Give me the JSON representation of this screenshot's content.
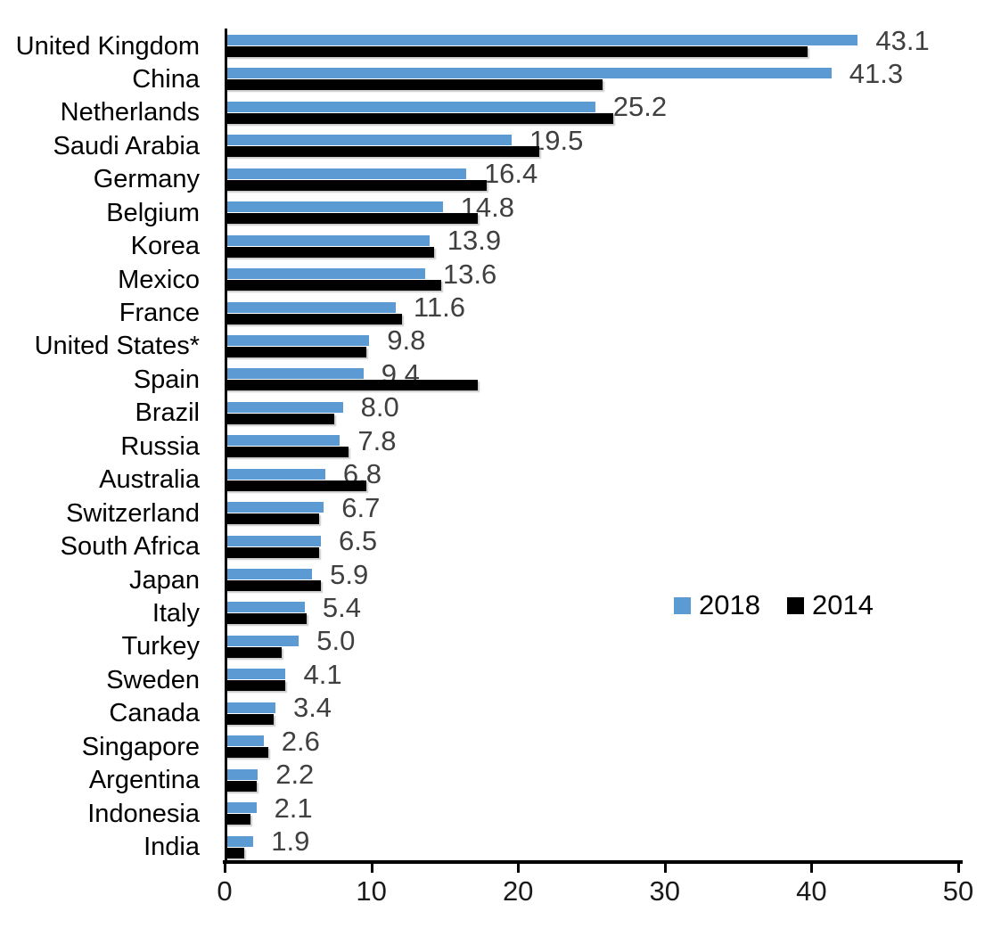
{
  "chart_data": {
    "type": "bar",
    "orientation": "horizontal",
    "title": "",
    "xlabel": "",
    "ylabel": "",
    "xlim": [
      0,
      50
    ],
    "x_ticks": [
      "0",
      "10",
      "20",
      "30",
      "40",
      "50"
    ],
    "grid": false,
    "legend_position": "middle-right",
    "categories": [
      "United Kingdom",
      "China",
      "Netherlands",
      "Saudi Arabia",
      "Germany",
      "Belgium",
      "Korea",
      "Mexico",
      "France",
      "United States*",
      "Spain",
      "Brazil",
      "Russia",
      "Australia",
      "Switzerland",
      "South Africa",
      "Japan",
      "Italy",
      "Turkey",
      "Sweden",
      "Canada",
      "Singapore",
      "Argentina",
      "Indonesia",
      "India"
    ],
    "series": [
      {
        "name": "2018",
        "color": "#5b9ad2",
        "values": [
          43.1,
          41.3,
          25.2,
          19.5,
          16.4,
          14.8,
          13.9,
          13.6,
          11.6,
          9.8,
          9.4,
          8.0,
          7.8,
          6.8,
          6.7,
          6.5,
          5.9,
          5.4,
          5.0,
          4.1,
          3.4,
          2.6,
          2.2,
          2.1,
          1.9
        ]
      },
      {
        "name": "2014",
        "color": "#000000",
        "values": [
          39.7,
          25.7,
          26.4,
          21.4,
          17.8,
          17.2,
          14.2,
          14.7,
          12.0,
          9.6,
          17.2,
          7.4,
          8.4,
          9.6,
          6.4,
          6.4,
          6.5,
          5.5,
          3.8,
          4.1,
          3.3,
          2.9,
          2.1,
          1.7,
          1.3
        ]
      }
    ],
    "data_labels": [
      "43.1",
      "41.3",
      "25.2",
      "19.5",
      "16.4",
      "14.8",
      "13.9",
      "13.6",
      "11.6",
      "9.8",
      "9.4",
      "8.0",
      "7.8",
      "6.8",
      "6.7",
      "6.5",
      "5.9",
      "5.4",
      "5.0",
      "4.1",
      "3.4",
      "2.6",
      "2.2",
      "2.1",
      "1.9"
    ],
    "data_label_color": "#404040"
  }
}
